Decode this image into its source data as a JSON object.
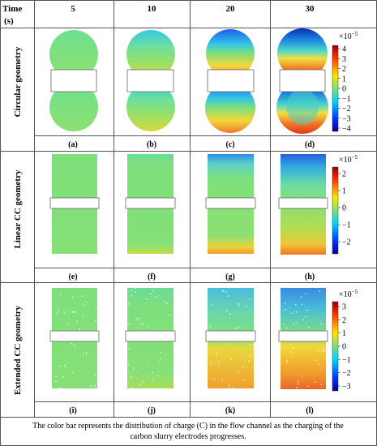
{
  "table": {
    "header_label_line1": "Time",
    "header_label_line2": "(s)",
    "time_columns": [
      "5",
      "10",
      "20",
      "30"
    ]
  },
  "rows": [
    {
      "label": "Circular geometry",
      "panel_labels": [
        "(a)",
        "(b)",
        "(c)",
        "(d)"
      ],
      "colorbar": {
        "exponent_base": "×10",
        "exponent": "−5",
        "ticks": [
          "4",
          "3",
          "2",
          "1",
          "0",
          "−1",
          "−2",
          "−3",
          "−4"
        ]
      }
    },
    {
      "label": "Linear CC geometry",
      "panel_labels": [
        "(e)",
        "(f)",
        "(g)",
        "(h)"
      ],
      "colorbar": {
        "exponent_base": "×10",
        "exponent": "−5",
        "ticks": [
          "2",
          "1",
          "0",
          "−1",
          "−2"
        ]
      }
    },
    {
      "label": "Extended CC geometry",
      "panel_labels": [
        "(i)",
        "(j)",
        "(k)",
        "(l)"
      ],
      "colorbar": {
        "exponent_base": "×10",
        "exponent": "−5",
        "ticks": [
          "3",
          "2",
          "1",
          "0",
          "−1",
          "−2",
          "−3"
        ]
      }
    }
  ],
  "caption": {
    "line1": "The color bar represents the distribution of charge (C) in the flow channel as the charging of the",
    "line2": "carbon slurry electrodes progresses."
  },
  "colors": {
    "positive": "#d7301f",
    "neutral": "#7fe07a",
    "negative": "#1f3cc4",
    "grid": "#555555"
  }
}
